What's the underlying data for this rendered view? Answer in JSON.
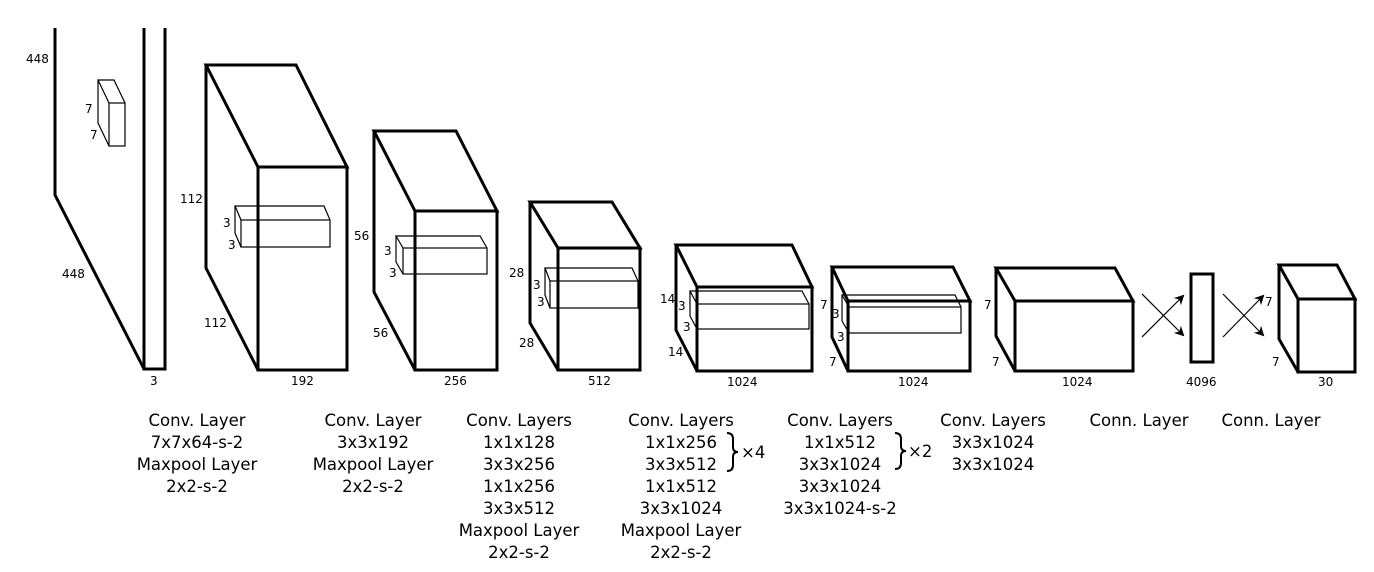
{
  "layers": [
    {
      "dims": [
        "448",
        "448",
        "3"
      ],
      "kernel": [
        "7",
        "7"
      ],
      "caption": [
        "Conv. Layer",
        "7x7x64-s-2",
        "Maxpool Layer",
        "2x2-s-2"
      ]
    },
    {
      "dims": [
        "112",
        "112",
        "192"
      ],
      "kernel": [
        "3",
        "3"
      ],
      "caption": [
        "Conv. Layer",
        "3x3x192",
        "Maxpool Layer",
        "2x2-s-2"
      ]
    },
    {
      "dims": [
        "56",
        "56",
        "256"
      ],
      "kernel": [
        "3",
        "3"
      ],
      "caption": [
        "Conv. Layers",
        "1x1x128",
        "3x3x256",
        "1x1x256",
        "3x3x512",
        "Maxpool Layer",
        "2x2-s-2"
      ]
    },
    {
      "dims": [
        "28",
        "28",
        "512"
      ],
      "kernel": [
        "3",
        "3"
      ],
      "caption": [
        "Conv. Layers",
        "1x1x256",
        "3x3x512",
        "1x1x512",
        "3x3x1024",
        "Maxpool Layer",
        "2x2-s-2"
      ],
      "repeat": "×4"
    },
    {
      "dims": [
        "14",
        "14",
        "1024"
      ],
      "kernel": [
        "3",
        "3"
      ],
      "caption": [
        "Conv. Layers",
        "1x1x512",
        "3x3x1024",
        "3x3x1024",
        "3x3x1024-s-2"
      ],
      "repeat": "×2"
    },
    {
      "dims": [
        "7",
        "7",
        "1024"
      ],
      "kernel": [
        "3",
        "3"
      ],
      "caption": [
        "Conv. Layers",
        "3x3x1024",
        "3x3x1024"
      ]
    },
    {
      "dims": [
        "7",
        "7",
        "1024"
      ],
      "caption": [
        "Conn. Layer"
      ]
    },
    {
      "dims": [
        "4096"
      ],
      "caption": [
        "Conn. Layer"
      ]
    },
    {
      "dims": [
        "7",
        "7",
        "30"
      ]
    }
  ]
}
